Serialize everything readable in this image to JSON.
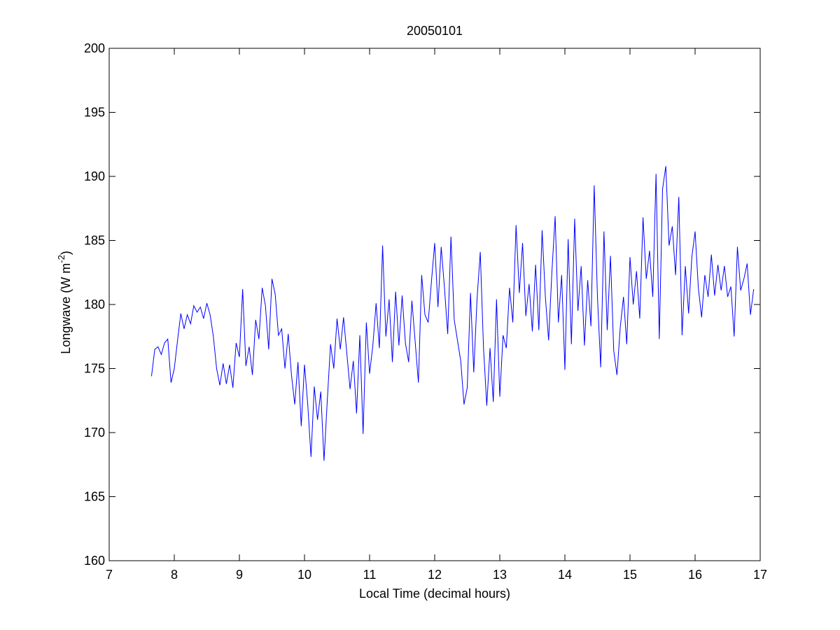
{
  "chart_data": {
    "type": "line",
    "title": "20050101",
    "xlabel": "Local Time (decimal hours)",
    "ylabel_parts": [
      "Longwave (W m",
      "-2",
      ")"
    ],
    "xlim": [
      7,
      17
    ],
    "ylim": [
      160,
      200
    ],
    "xticks": [
      7,
      8,
      9,
      10,
      11,
      12,
      13,
      14,
      15,
      16,
      17
    ],
    "yticks": [
      160,
      165,
      170,
      175,
      180,
      185,
      190,
      195,
      200
    ],
    "grid": false,
    "series": [
      {
        "color": "#0000ff",
        "x": [
          7.65,
          7.7,
          7.75,
          7.8,
          7.85,
          7.9,
          7.95,
          8.0,
          8.05,
          8.1,
          8.15,
          8.2,
          8.25,
          8.3,
          8.35,
          8.4,
          8.45,
          8.5,
          8.55,
          8.6,
          8.65,
          8.7,
          8.75,
          8.8,
          8.85,
          8.9,
          8.95,
          9.0,
          9.05,
          9.1,
          9.15,
          9.2,
          9.25,
          9.3,
          9.35,
          9.4,
          9.45,
          9.5,
          9.55,
          9.6,
          9.65,
          9.7,
          9.75,
          9.8,
          9.85,
          9.9,
          9.95,
          10.0,
          10.05,
          10.1,
          10.15,
          10.2,
          10.25,
          10.3,
          10.35,
          10.4,
          10.45,
          10.5,
          10.55,
          10.6,
          10.65,
          10.7,
          10.75,
          10.8,
          10.85,
          10.9,
          10.95,
          11.0,
          11.05,
          11.1,
          11.15,
          11.2,
          11.25,
          11.3,
          11.35,
          11.4,
          11.45,
          11.5,
          11.55,
          11.6,
          11.65,
          11.7,
          11.75,
          11.8,
          11.85,
          11.9,
          11.95,
          12.0,
          12.05,
          12.1,
          12.15,
          12.2,
          12.25,
          12.3,
          12.35,
          12.4,
          12.45,
          12.5,
          12.55,
          12.6,
          12.65,
          12.7,
          12.75,
          12.8,
          12.85,
          12.9,
          12.95,
          13.0,
          13.05,
          13.1,
          13.15,
          13.2,
          13.25,
          13.3,
          13.35,
          13.4,
          13.45,
          13.5,
          13.55,
          13.6,
          13.65,
          13.7,
          13.75,
          13.8,
          13.85,
          13.9,
          13.95,
          14.0,
          14.05,
          14.1,
          14.15,
          14.2,
          14.25,
          14.3,
          14.35,
          14.4,
          14.45,
          14.5,
          14.55,
          14.6,
          14.65,
          14.7,
          14.75,
          14.8,
          14.85,
          14.9,
          14.95,
          15.0,
          15.05,
          15.1,
          15.15,
          15.2,
          15.25,
          15.3,
          15.35,
          15.4,
          15.45,
          15.5,
          15.55,
          15.6,
          15.65,
          15.7,
          15.75,
          15.8,
          15.85,
          15.9,
          15.95,
          16.0,
          16.05,
          16.1,
          16.15,
          16.2,
          16.25,
          16.3,
          16.35,
          16.4,
          16.45,
          16.5,
          16.55,
          16.6,
          16.65,
          16.7,
          16.75,
          16.8,
          16.85,
          16.9
        ],
        "values": [
          174.4,
          176.5,
          176.7,
          176.1,
          177.0,
          177.3,
          173.9,
          175.0,
          177.2,
          179.3,
          178.1,
          179.2,
          178.5,
          179.9,
          179.4,
          179.8,
          178.9,
          180.1,
          179.2,
          177.5,
          175.0,
          173.7,
          175.4,
          173.8,
          175.3,
          173.5,
          177.0,
          175.9,
          181.2,
          175.2,
          176.7,
          174.5,
          178.8,
          177.3,
          181.3,
          179.9,
          176.5,
          182.0,
          180.8,
          177.6,
          178.1,
          175.0,
          177.7,
          174.5,
          172.2,
          175.5,
          170.5,
          175.3,
          172.2,
          168.1,
          173.6,
          171.0,
          173.2,
          167.8,
          172.5,
          176.9,
          175.0,
          178.9,
          176.5,
          179.0,
          176.2,
          173.4,
          175.6,
          171.5,
          177.6,
          169.9,
          178.6,
          174.6,
          176.8,
          180.1,
          176.6,
          184.6,
          177.5,
          180.4,
          175.5,
          181.0,
          176.8,
          180.7,
          177.0,
          175.5,
          180.3,
          177.1,
          173.9,
          182.3,
          179.2,
          178.6,
          181.8,
          184.8,
          179.8,
          184.5,
          181.3,
          177.7,
          185.3,
          178.8,
          177.2,
          175.6,
          172.2,
          173.5,
          180.9,
          174.7,
          180.4,
          184.1,
          176.6,
          172.1,
          176.6,
          172.4,
          180.4,
          172.8,
          177.6,
          176.6,
          181.3,
          178.6,
          186.2,
          180.9,
          184.8,
          179.1,
          181.6,
          177.9,
          183.1,
          178.0,
          185.8,
          180.6,
          177.2,
          182.5,
          186.9,
          178.6,
          182.3,
          174.9,
          185.1,
          176.9,
          186.7,
          179.5,
          183.0,
          176.8,
          181.9,
          178.3,
          189.3,
          180.6,
          175.1,
          185.7,
          178.0,
          183.8,
          176.4,
          174.5,
          178.2,
          180.6,
          176.9,
          183.7,
          180.0,
          182.6,
          178.9,
          186.8,
          182.0,
          184.2,
          180.6,
          190.2,
          177.3,
          189.0,
          190.8,
          184.6,
          186.1,
          182.3,
          188.4,
          177.6,
          183.0,
          179.3,
          183.7,
          185.7,
          181.3,
          179.0,
          182.3,
          180.6,
          183.9,
          180.7,
          183.1,
          181.1,
          183.0,
          180.6,
          181.4,
          177.5,
          184.5,
          181.1,
          182.0,
          183.2,
          179.2,
          181.2
        ]
      }
    ]
  }
}
